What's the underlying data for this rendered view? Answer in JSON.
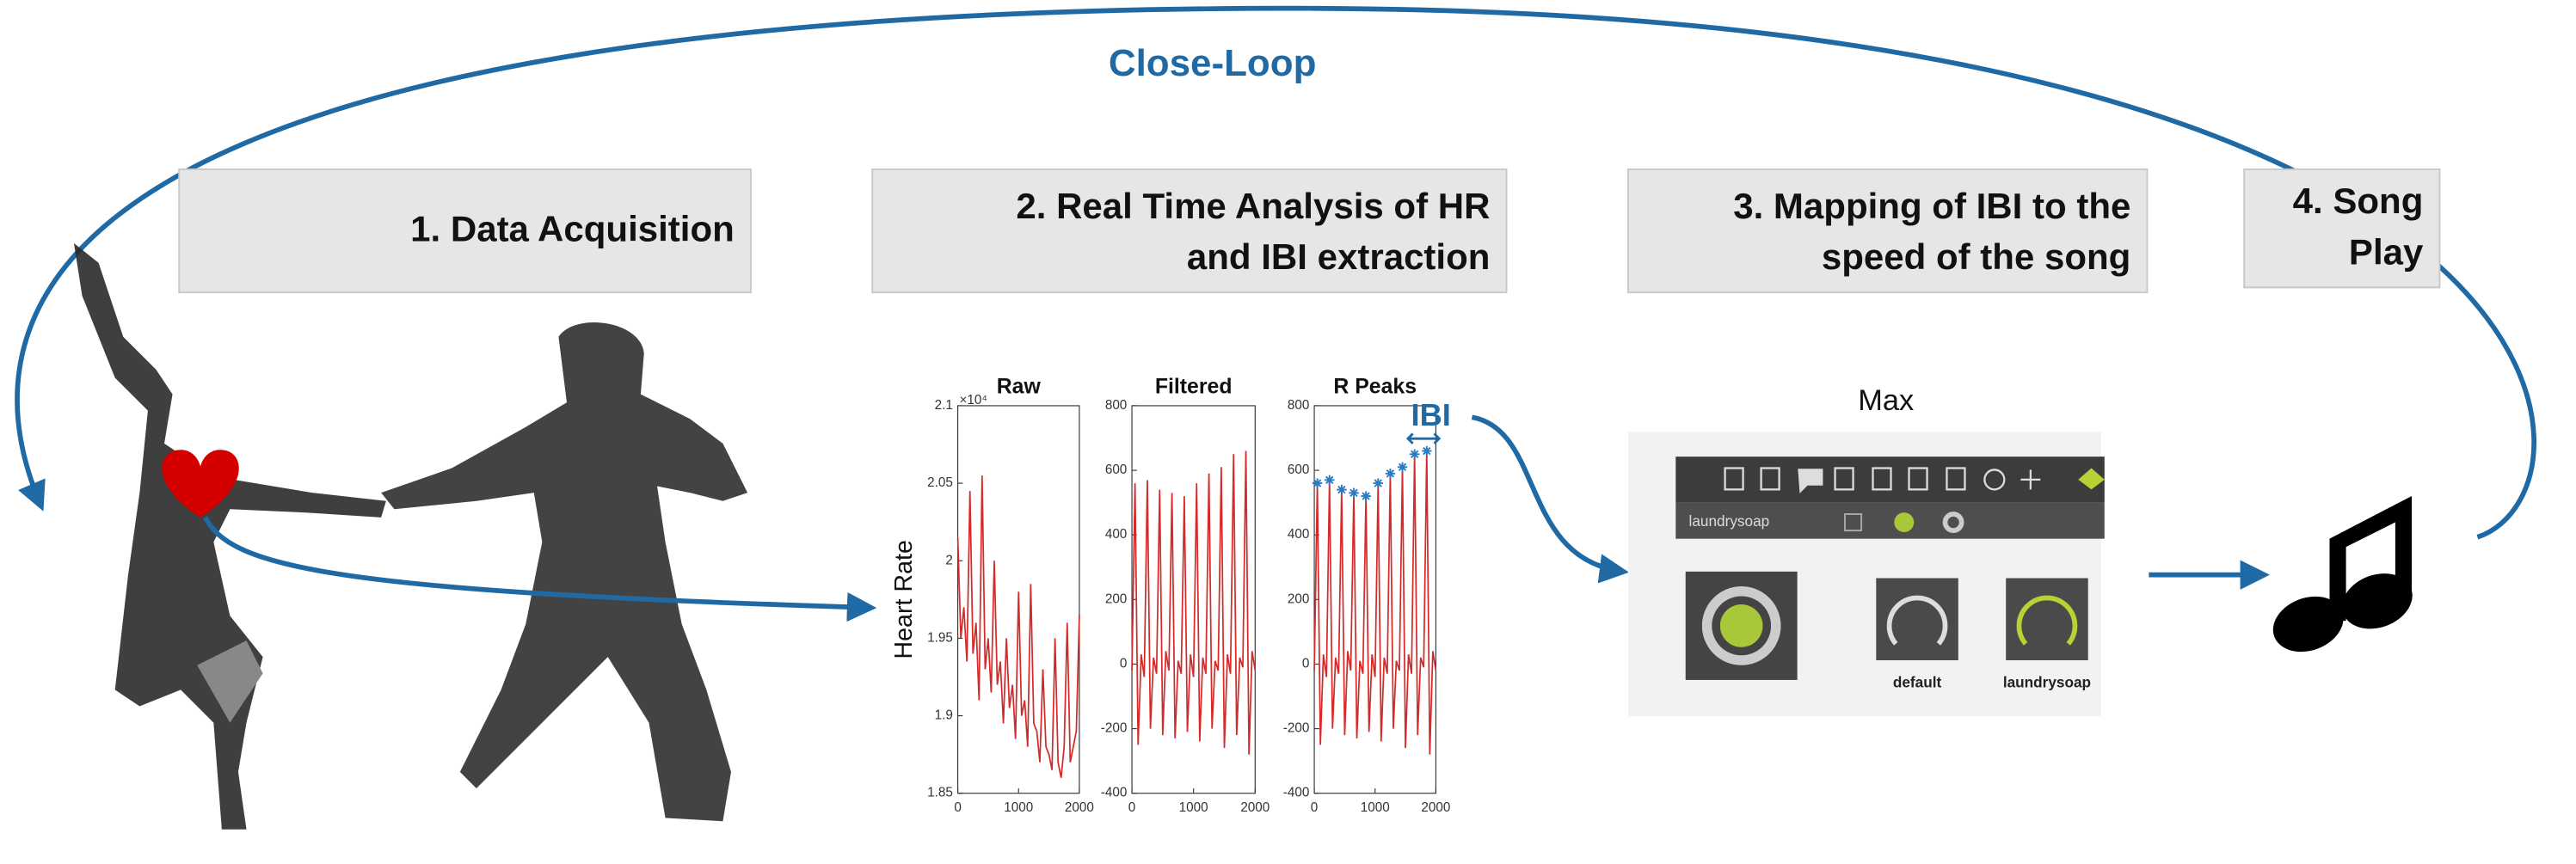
{
  "header": {
    "title": "Close-Loop"
  },
  "steps": [
    {
      "lines": [
        "1. Data Acquisition"
      ]
    },
    {
      "lines": [
        "2. Real Time Analysis of HR",
        "and IBI extraction"
      ]
    },
    {
      "lines": [
        "3. Mapping of IBI to the",
        "speed of the song"
      ]
    },
    {
      "lines": [
        "4. Song",
        "Play"
      ]
    }
  ],
  "chart_data": [
    {
      "type": "line",
      "title": "Raw",
      "ylabel": "Heart Rate",
      "y_multiplier": "×10⁴",
      "x": [
        0,
        50,
        100,
        150,
        200,
        250,
        300,
        350,
        400,
        450,
        500,
        550,
        600,
        650,
        700,
        750,
        800,
        850,
        900,
        950,
        1000,
        1050,
        1100,
        1150,
        1200,
        1250,
        1300,
        1350,
        1400,
        1450,
        1500,
        1550,
        1600,
        1650,
        1700,
        1750,
        1800,
        1850,
        1900,
        1950,
        2000
      ],
      "series": [
        {
          "color": "#d42a2a",
          "values": [
            20150,
            19500,
            19700,
            19350,
            20450,
            19400,
            19600,
            19100,
            20550,
            19300,
            19500,
            19150,
            20000,
            19200,
            19350,
            18950,
            19500,
            19050,
            19200,
            18850,
            19800,
            19000,
            19100,
            18800,
            19850,
            18950,
            18900,
            18700,
            19300,
            18800,
            18750,
            18650,
            19500,
            18700,
            18600,
            18800,
            19600,
            18700,
            18800,
            18900,
            19650
          ]
        }
      ],
      "xlim": [
        0,
        2000
      ],
      "xticks": [
        0,
        1000,
        2000
      ],
      "ylim": [
        18500,
        21000
      ],
      "yticks": [
        {
          "value": 18500,
          "label": "1.85"
        },
        {
          "value": 19000,
          "label": "1.9"
        },
        {
          "value": 19500,
          "label": "1.95"
        },
        {
          "value": 20000,
          "label": "2"
        },
        {
          "value": 20500,
          "label": "2.05"
        },
        {
          "value": 21000,
          "label": "2.1"
        }
      ]
    },
    {
      "type": "line",
      "title": "Filtered",
      "x": [
        0,
        50,
        100,
        150,
        200,
        250,
        300,
        350,
        400,
        450,
        500,
        550,
        600,
        650,
        700,
        750,
        800,
        850,
        900,
        950,
        1000,
        1050,
        1100,
        1150,
        1200,
        1250,
        1300,
        1350,
        1400,
        1450,
        1500,
        1550,
        1600,
        1650,
        1700,
        1750,
        1800,
        1850,
        1900,
        1950,
        2000
      ],
      "series": [
        {
          "color": "#d42a2a",
          "values": [
            -20,
            560,
            -250,
            30,
            -40,
            570,
            -200,
            20,
            -30,
            540,
            -220,
            40,
            -20,
            530,
            -230,
            10,
            -30,
            520,
            -210,
            30,
            -40,
            560,
            -240,
            20,
            -30,
            590,
            -200,
            10,
            -20,
            610,
            -260,
            30,
            -30,
            650,
            -220,
            20,
            -10,
            660,
            -280,
            40,
            -20
          ]
        }
      ],
      "xlim": [
        0,
        2000
      ],
      "xticks": [
        0,
        1000,
        2000
      ],
      "ylim": [
        -400,
        800
      ],
      "yticks": [
        -400,
        -200,
        0,
        200,
        400,
        600,
        800
      ]
    },
    {
      "type": "line",
      "title": "R Peaks",
      "annotation": "IBI",
      "x": [
        0,
        50,
        100,
        150,
        200,
        250,
        300,
        350,
        400,
        450,
        500,
        550,
        600,
        650,
        700,
        750,
        800,
        850,
        900,
        950,
        1000,
        1050,
        1100,
        1150,
        1200,
        1250,
        1300,
        1350,
        1400,
        1450,
        1500,
        1550,
        1600,
        1650,
        1700,
        1750,
        1800,
        1850,
        1900,
        1950,
        2000
      ],
      "series": [
        {
          "color": "#d42a2a",
          "values": [
            -20,
            560,
            -250,
            30,
            -40,
            570,
            -200,
            20,
            -30,
            540,
            -220,
            40,
            -20,
            530,
            -230,
            10,
            -30,
            520,
            -210,
            30,
            -40,
            560,
            -240,
            20,
            -30,
            590,
            -200,
            10,
            -20,
            610,
            -260,
            30,
            -30,
            650,
            -220,
            20,
            -10,
            660,
            -280,
            40,
            -20
          ]
        },
        {
          "color": "#2a7bc0",
          "marker": "*",
          "x": [
            50,
            250,
            450,
            650,
            850,
            1050,
            1250,
            1450,
            1650,
            1850
          ],
          "values": [
            560,
            570,
            540,
            530,
            520,
            560,
            590,
            610,
            650,
            660
          ]
        }
      ],
      "xlim": [
        0,
        2000
      ],
      "xticks": [
        0,
        1000,
        2000
      ],
      "ylim": [
        -400,
        800
      ],
      "yticks": [
        -400,
        -200,
        0,
        200,
        400,
        600,
        800
      ]
    }
  ],
  "max_panel": {
    "title": "Max",
    "menu": "laundrysoap",
    "knobs": [
      "default",
      "laundrysoap"
    ]
  }
}
